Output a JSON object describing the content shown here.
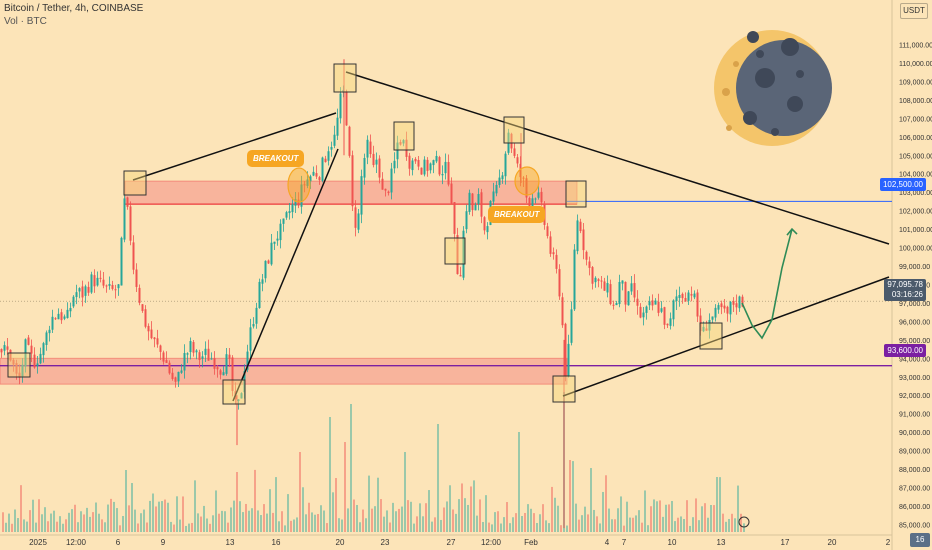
{
  "header": {
    "symbol": "Bitcoin / Tether, 4h, COINBASE",
    "volume": "Vol · BTC"
  },
  "currency": "USDT",
  "badges": {
    "resistance": "102,500.00",
    "current_price": "97,095.78",
    "countdown": "03:16:26",
    "support": "93,600.00"
  },
  "annotations": [
    "BREAKOUT",
    "BREAKOUT"
  ],
  "zoom_label": "16",
  "colors": {
    "background": "#fce4b8",
    "up": "#26a69a",
    "down": "#ef5350",
    "zone": "#f57b7b",
    "resistance_line": "#2962ff",
    "support_line": "#7b1fa2",
    "breakout": "#f6a623",
    "arrow": "#2e8b57"
  },
  "chart_data": {
    "type": "candlestick",
    "title": "Bitcoin / Tether, 4h, COINBASE",
    "ylim": [
      84000,
      112000
    ],
    "y_ticks": [
      85000,
      86000,
      87000,
      88000,
      89000,
      90000,
      91000,
      92000,
      93000,
      94000,
      95000,
      96000,
      97000,
      98000,
      99000,
      100000,
      101000,
      102000,
      103000,
      104000,
      105000,
      106000,
      107000,
      108000,
      109000,
      110000,
      111000
    ],
    "x_ticks": [
      "2025",
      "12:00",
      "6",
      "9",
      "13",
      "16",
      "20",
      "23",
      "27",
      "12:00",
      "Feb",
      "4",
      "7",
      "10",
      "13",
      "17",
      "20",
      "2"
    ],
    "levels": {
      "resistance": 102500,
      "support": 93600
    },
    "zones": [
      {
        "name": "resistance-zone",
        "from": 102350,
        "to": 103600
      },
      {
        "name": "support-zone",
        "from": 92600,
        "to": 94000
      }
    ],
    "price_path": [
      [
        0,
        94500
      ],
      [
        9,
        94300
      ],
      [
        18,
        92600
      ],
      [
        25,
        94600
      ],
      [
        33,
        93800
      ],
      [
        42,
        94400
      ],
      [
        50,
        96100
      ],
      [
        58,
        96500
      ],
      [
        66,
        96000
      ],
      [
        74,
        97600
      ],
      [
        82,
        97500
      ],
      [
        92,
        98300
      ],
      [
        100,
        98000
      ],
      [
        110,
        97600
      ],
      [
        118,
        97800
      ],
      [
        124,
        102400
      ],
      [
        128,
        101600
      ],
      [
        133,
        99000
      ],
      [
        138,
        97500
      ],
      [
        143,
        96200
      ],
      [
        150,
        95200
      ],
      [
        158,
        94500
      ],
      [
        165,
        93900
      ],
      [
        170,
        93100
      ],
      [
        176,
        92500
      ],
      [
        182,
        93900
      ],
      [
        190,
        94600
      ],
      [
        197,
        94000
      ],
      [
        205,
        94200
      ],
      [
        212,
        94000
      ],
      [
        220,
        93500
      ],
      [
        228,
        94000
      ],
      [
        234,
        91300
      ],
      [
        239,
        91500
      ],
      [
        244,
        93600
      ],
      [
        250,
        95400
      ],
      [
        258,
        97600
      ],
      [
        266,
        99100
      ],
      [
        274,
        100500
      ],
      [
        282,
        101000
      ],
      [
        290,
        102100
      ],
      [
        298,
        102600
      ],
      [
        304,
        103500
      ],
      [
        312,
        104000
      ],
      [
        320,
        104100
      ],
      [
        328,
        105500
      ],
      [
        335,
        106000
      ],
      [
        339,
        107800
      ],
      [
        344,
        108500
      ],
      [
        348,
        105500
      ],
      [
        352,
        102000
      ],
      [
        357,
        101000
      ],
      [
        362,
        104500
      ],
      [
        368,
        105600
      ],
      [
        372,
        104000
      ],
      [
        377,
        105000
      ],
      [
        383,
        102500
      ],
      [
        388,
        103300
      ],
      [
        393,
        104200
      ],
      [
        398,
        106000
      ],
      [
        405,
        105500
      ],
      [
        410,
        104500
      ],
      [
        416,
        104900
      ],
      [
        422,
        104300
      ],
      [
        428,
        104400
      ],
      [
        435,
        104600
      ],
      [
        440,
        104300
      ],
      [
        445,
        104200
      ],
      [
        450,
        103600
      ],
      [
        455,
        99500
      ],
      [
        459,
        98200
      ],
      [
        464,
        101500
      ],
      [
        468,
        103000
      ],
      [
        473,
        101800
      ],
      [
        478,
        102600
      ],
      [
        484,
        101000
      ],
      [
        490,
        102200
      ],
      [
        496,
        103000
      ],
      [
        502,
        104300
      ],
      [
        508,
        106300
      ],
      [
        513,
        105000
      ],
      [
        518,
        104100
      ],
      [
        523,
        103500
      ],
      [
        528,
        102200
      ],
      [
        534,
        103100
      ],
      [
        539,
        102500
      ],
      [
        544,
        101300
      ],
      [
        550,
        99800
      ],
      [
        556,
        98600
      ],
      [
        561,
        97100
      ],
      [
        564,
        93100
      ],
      [
        567,
        93900
      ],
      [
        570,
        95300
      ],
      [
        574,
        100000
      ],
      [
        578,
        101900
      ],
      [
        582,
        100500
      ],
      [
        586,
        99300
      ],
      [
        591,
        98500
      ],
      [
        596,
        98200
      ],
      [
        602,
        97800
      ],
      [
        608,
        97600
      ],
      [
        614,
        96600
      ],
      [
        620,
        98300
      ],
      [
        626,
        96900
      ],
      [
        632,
        97800
      ],
      [
        638,
        96300
      ],
      [
        644,
        96300
      ],
      [
        650,
        96800
      ],
      [
        656,
        96900
      ],
      [
        662,
        96500
      ],
      [
        668,
        95300
      ],
      [
        674,
        97200
      ],
      [
        680,
        97500
      ],
      [
        686,
        97500
      ],
      [
        692,
        97700
      ],
      [
        698,
        96000
      ],
      [
        702,
        95200
      ],
      [
        708,
        96200
      ],
      [
        714,
        96200
      ],
      [
        720,
        96700
      ],
      [
        726,
        96200
      ],
      [
        732,
        97000
      ],
      [
        738,
        97100
      ],
      [
        742,
        97100
      ]
    ],
    "trendlines": [
      {
        "name": "wedge-upper-left",
        "from": [
          "2025-01-06",
          102500
        ],
        "to": [
          "2025-01-20",
          106400
        ]
      },
      {
        "name": "rising-support-left",
        "from": [
          "2025-01-13",
          90800
        ],
        "to": [
          "2025-01-20",
          104300
        ]
      },
      {
        "name": "descending-resistance",
        "from": [
          "2025-01-20",
          108700
        ],
        "to": [
          "2025-02-20",
          99200
        ]
      },
      {
        "name": "ascending-support",
        "from": [
          "2025-02-03",
          91100
        ],
        "to": [
          "2025-02-20",
          98200
        ]
      }
    ],
    "projection": [
      [
        742,
        97000
      ],
      [
        752,
        95800
      ],
      [
        762,
        95100
      ],
      [
        772,
        96100
      ],
      [
        782,
        98900
      ],
      [
        792,
        101000
      ]
    ]
  }
}
